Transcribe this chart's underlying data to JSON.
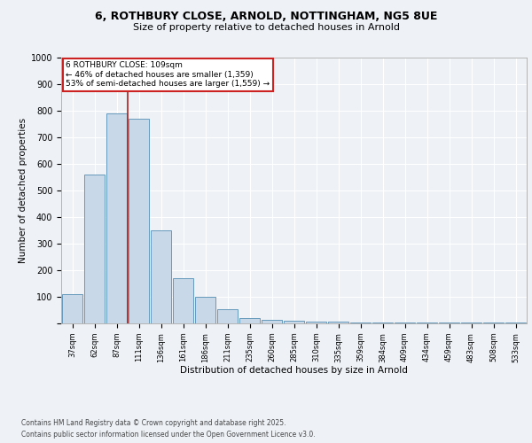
{
  "title_line1": "6, ROTHBURY CLOSE, ARNOLD, NOTTINGHAM, NG5 8UE",
  "title_line2": "Size of property relative to detached houses in Arnold",
  "xlabel": "Distribution of detached houses by size in Arnold",
  "ylabel": "Number of detached properties",
  "categories": [
    "37sqm",
    "62sqm",
    "87sqm",
    "111sqm",
    "136sqm",
    "161sqm",
    "186sqm",
    "211sqm",
    "235sqm",
    "260sqm",
    "285sqm",
    "310sqm",
    "335sqm",
    "359sqm",
    "384sqm",
    "409sqm",
    "434sqm",
    "459sqm",
    "483sqm",
    "508sqm",
    "533sqm"
  ],
  "values": [
    110,
    560,
    790,
    770,
    350,
    170,
    100,
    55,
    20,
    15,
    10,
    8,
    8,
    5,
    3,
    5,
    3,
    3,
    3,
    5,
    3
  ],
  "bar_color": "#c8d8e8",
  "bar_edge_color": "#6699bb",
  "vline_x_index": 2.5,
  "vline_color": "#aa2222",
  "annotation_line1": "6 ROTHBURY CLOSE: 109sqm",
  "annotation_line2": "← 46% of detached houses are smaller (1,359)",
  "annotation_line3": "53% of semi-detached houses are larger (1,559) →",
  "annotation_box_color": "#ffffff",
  "annotation_box_edge": "#cc2222",
  "ylim": [
    0,
    1000
  ],
  "yticks": [
    0,
    100,
    200,
    300,
    400,
    500,
    600,
    700,
    800,
    900,
    1000
  ],
  "background_color": "#eef2f7",
  "plot_bg_color": "#eef2f7",
  "footer_line1": "Contains HM Land Registry data © Crown copyright and database right 2025.",
  "footer_line2": "Contains public sector information licensed under the Open Government Licence v3.0."
}
